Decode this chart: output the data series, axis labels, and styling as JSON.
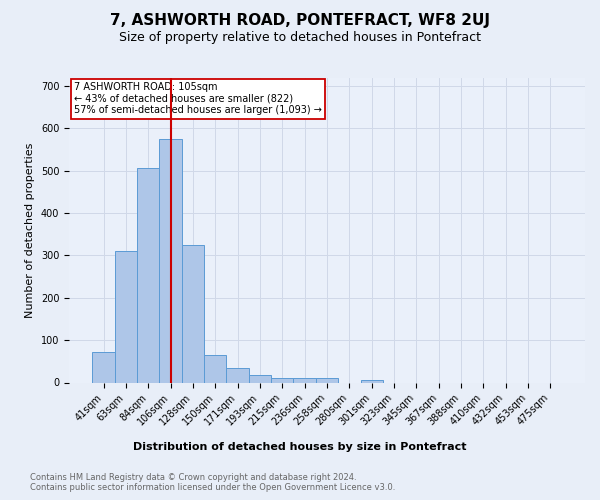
{
  "title": "7, ASHWORTH ROAD, PONTEFRACT, WF8 2UJ",
  "subtitle": "Size of property relative to detached houses in Pontefract",
  "xlabel": "Distribution of detached houses by size in Pontefract",
  "ylabel": "Number of detached properties",
  "footnote1": "Contains HM Land Registry data © Crown copyright and database right 2024.",
  "footnote2": "Contains public sector information licensed under the Open Government Licence v3.0.",
  "bar_labels": [
    "41sqm",
    "63sqm",
    "84sqm",
    "106sqm",
    "128sqm",
    "150sqm",
    "171sqm",
    "193sqm",
    "215sqm",
    "236sqm",
    "258sqm",
    "280sqm",
    "301sqm",
    "323sqm",
    "345sqm",
    "367sqm",
    "388sqm",
    "410sqm",
    "432sqm",
    "453sqm",
    "475sqm"
  ],
  "bar_values": [
    72,
    311,
    506,
    575,
    325,
    65,
    35,
    18,
    11,
    11,
    11,
    0,
    7,
    0,
    0,
    0,
    0,
    0,
    0,
    0,
    0
  ],
  "bar_color": "#aec6e8",
  "bar_edgecolor": "#5b9bd5",
  "vline_pos": 3.0,
  "vline_color": "#cc0000",
  "annotation_text": "7 ASHWORTH ROAD: 105sqm\n← 43% of detached houses are smaller (822)\n57% of semi-detached houses are larger (1,093) →",
  "annotation_box_edgecolor": "#cc0000",
  "annotation_box_facecolor": "#ffffff",
  "ylim": [
    0,
    720
  ],
  "yticks": [
    0,
    100,
    200,
    300,
    400,
    500,
    600,
    700
  ],
  "grid_color": "#d0d8e8",
  "bg_color": "#e8eef8",
  "plot_bg_color": "#eaf0fa",
  "title_fontsize": 11,
  "subtitle_fontsize": 9,
  "ylabel_fontsize": 8,
  "tick_fontsize": 7,
  "annotation_fontsize": 7,
  "xlabel_fontsize": 8,
  "footnote_fontsize": 6
}
